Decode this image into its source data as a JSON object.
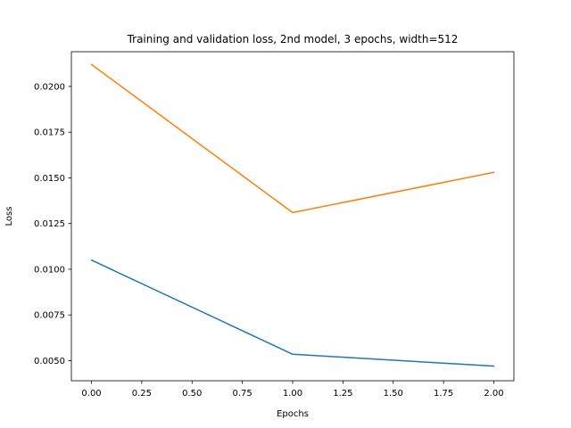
{
  "chart_data": {
    "type": "line",
    "title": "Training and validation loss, 2nd model, 3 epochs, width=512",
    "xlabel": "Epochs",
    "ylabel": "Loss",
    "x": [
      0,
      1,
      2
    ],
    "xlim": [
      -0.1,
      2.1
    ],
    "ylim": [
      0.0039,
      0.0219
    ],
    "xticks": [
      0.0,
      0.25,
      0.5,
      0.75,
      1.0,
      1.25,
      1.5,
      1.75,
      2.0
    ],
    "xtick_labels": [
      "0.00",
      "0.25",
      "0.50",
      "0.75",
      "1.00",
      "1.25",
      "1.50",
      "1.75",
      "2.00"
    ],
    "yticks": [
      0.005,
      0.0075,
      0.01,
      0.0125,
      0.015,
      0.0175,
      0.02
    ],
    "ytick_labels": [
      "0.0050",
      "0.0075",
      "0.0100",
      "0.0125",
      "0.0150",
      "0.0175",
      "0.0200"
    ],
    "grid": false,
    "legend": "none",
    "series": [
      {
        "values": [
          0.0105,
          0.00535,
          0.0047
        ],
        "color": "#1f77b4"
      },
      {
        "values": [
          0.0212,
          0.0131,
          0.0153
        ],
        "color": "#ff7f0e"
      }
    ]
  }
}
